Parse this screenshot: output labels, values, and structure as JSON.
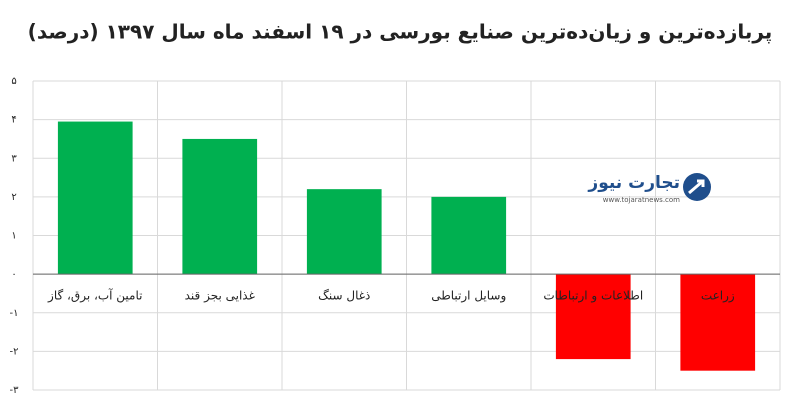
{
  "chart_data": {
    "type": "bar",
    "title": "پربازده‌ترین و زیان‌ده‌ترین صنایع بورسی در ۱۹ اسفند ماه سال ۱۳۹۷ (درصد)",
    "categories": [
      "تامین آب، برق، گاز",
      "غذایی بجز قند",
      "ذغال سنگ",
      "وسایل ارتباطی",
      "اطلاعات و ارتباطات",
      "زراعت"
    ],
    "values": [
      3.95,
      3.5,
      2.2,
      2.0,
      -2.2,
      -2.5
    ],
    "colors": [
      "#00b050",
      "#00b050",
      "#00b050",
      "#00b050",
      "#ff0000",
      "#ff0000"
    ],
    "ylim": [
      -3,
      5
    ],
    "yticks": [
      {
        "value": -3,
        "label": "-۳"
      },
      {
        "value": -2,
        "label": "-۲"
      },
      {
        "value": -1,
        "label": "-۱"
      },
      {
        "value": 0,
        "label": "۰"
      },
      {
        "value": 1,
        "label": "۱"
      },
      {
        "value": 2,
        "label": "۲"
      },
      {
        "value": 3,
        "label": "۳"
      },
      {
        "value": 4,
        "label": "۴"
      },
      {
        "value": 5,
        "label": "۵"
      }
    ],
    "grid": true
  },
  "logo": {
    "name": "تجارت نیوز",
    "url": "www.tojaratnews.com"
  }
}
